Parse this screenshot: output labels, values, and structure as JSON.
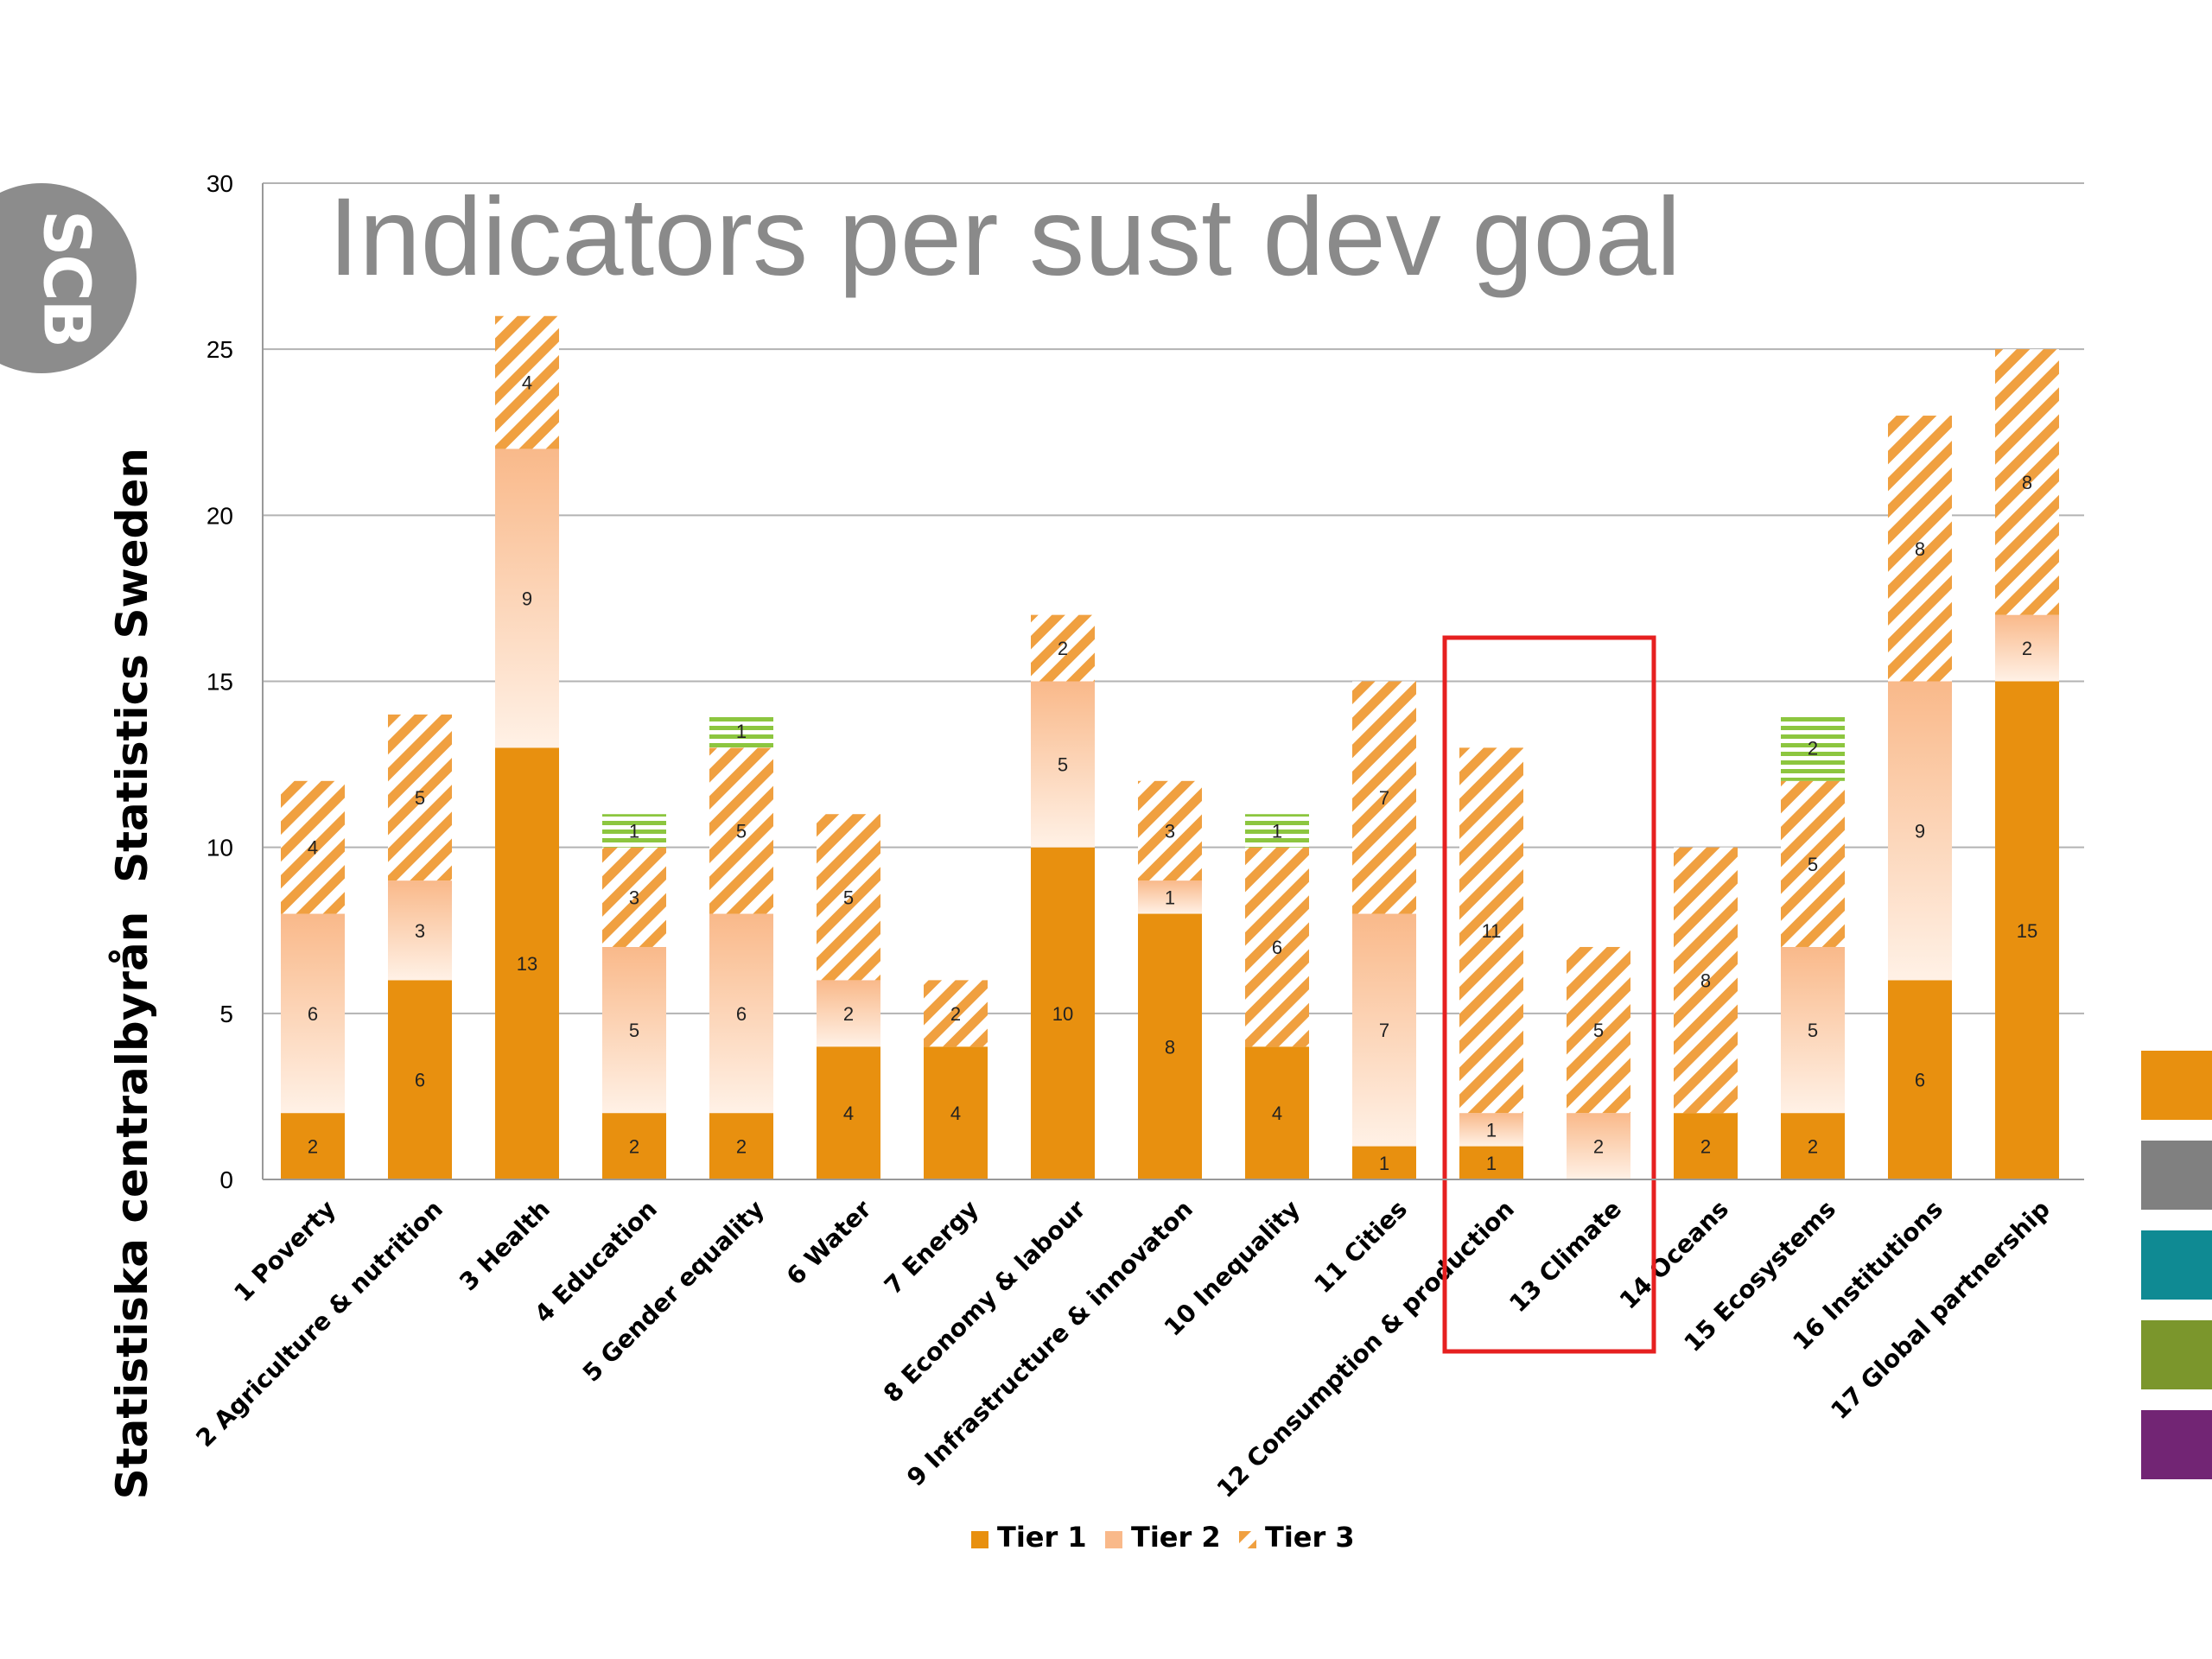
{
  "slide": {
    "title": "Indicators per sust dev goal",
    "logo_text": "SCB",
    "side_label_top": "Statistics Sweden",
    "side_label_bottom": "Statistiska centralbyrån",
    "side_swatches": [
      "#e8900f",
      "#808080",
      "#0f8a93",
      "#7b962c",
      "#722574"
    ]
  },
  "chart_data": {
    "type": "bar",
    "stacked": true,
    "title": "",
    "xlabel": "",
    "ylabel": "",
    "ylim": [
      0,
      30
    ],
    "yticks": [
      0,
      5,
      10,
      15,
      20,
      25,
      30
    ],
    "grid": true,
    "legend_position": "bottom",
    "highlight": {
      "categories": [
        "12 Consumption & production",
        "13 Climate"
      ],
      "color": "#e62020"
    },
    "categories": [
      "1 Poverty",
      "2 Agriculture & nutrition",
      "3 Health",
      "4 Education",
      "5 Gender equality",
      "6 Water",
      "7 Energy",
      "8 Economy & labour",
      "9 Infrastructure & innovaton",
      "10 Inequality",
      "11 Cities",
      "12 Consumption & production",
      "13 Climate",
      "14 Oceans",
      "15 Ecosystems",
      "16 Institutions",
      "17 Global partnership"
    ],
    "series": [
      {
        "name": "Tier 1",
        "style": "solid",
        "color": "#e8900f",
        "values": [
          2,
          6,
          13,
          2,
          2,
          4,
          4,
          10,
          8,
          4,
          1,
          1,
          0,
          2,
          2,
          6,
          15
        ]
      },
      {
        "name": "Tier 2",
        "style": "gradient",
        "color": "#f9b98a",
        "values": [
          6,
          3,
          9,
          5,
          6,
          2,
          0,
          5,
          1,
          0,
          7,
          1,
          2,
          0,
          5,
          9,
          2
        ]
      },
      {
        "name": "Tier 3",
        "style": "hatch",
        "color": "#f0a040",
        "values": [
          4,
          5,
          4,
          3,
          5,
          5,
          2,
          2,
          3,
          6,
          7,
          11,
          5,
          8,
          5,
          8,
          8
        ]
      },
      {
        "name": "",
        "style": "stripes",
        "color": "#8cc63f",
        "values": [
          0,
          0,
          0,
          1,
          1,
          0,
          0,
          0,
          0,
          1,
          0,
          0,
          0,
          0,
          2,
          0,
          0
        ]
      }
    ]
  }
}
